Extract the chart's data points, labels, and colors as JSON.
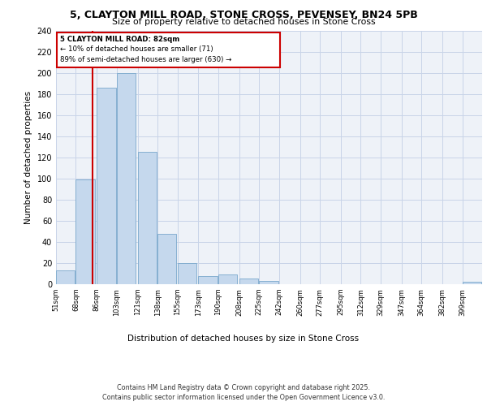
{
  "title_line1": "5, CLAYTON MILL ROAD, STONE CROSS, PEVENSEY, BN24 5PB",
  "title_line2": "Size of property relative to detached houses in Stone Cross",
  "xlabel": "Distribution of detached houses by size in Stone Cross",
  "ylabel": "Number of detached properties",
  "bin_labels": [
    "51sqm",
    "68sqm",
    "86sqm",
    "103sqm",
    "121sqm",
    "138sqm",
    "155sqm",
    "173sqm",
    "190sqm",
    "208sqm",
    "225sqm",
    "242sqm",
    "260sqm",
    "277sqm",
    "295sqm",
    "312sqm",
    "329sqm",
    "347sqm",
    "364sqm",
    "382sqm",
    "399sqm"
  ],
  "bin_edges": [
    51,
    68,
    86,
    103,
    121,
    138,
    155,
    173,
    190,
    208,
    225,
    242,
    260,
    277,
    295,
    312,
    329,
    347,
    364,
    382,
    399
  ],
  "bar_heights": [
    13,
    99,
    186,
    200,
    125,
    48,
    20,
    8,
    9,
    5,
    3,
    0,
    0,
    0,
    0,
    0,
    0,
    0,
    0,
    0,
    2
  ],
  "bar_color": "#c5d8ed",
  "bar_edge_color": "#7aa8cc",
  "property_size": 82,
  "red_line_color": "#cc0000",
  "annotation_text_line1": "5 CLAYTON MILL ROAD: 82sqm",
  "annotation_text_line2": "← 10% of detached houses are smaller (71)",
  "annotation_text_line3": "89% of semi-detached houses are larger (630) →",
  "ylim": [
    0,
    240
  ],
  "yticks": [
    0,
    20,
    40,
    60,
    80,
    100,
    120,
    140,
    160,
    180,
    200,
    220,
    240
  ],
  "grid_color": "#c8d4e8",
  "background_color": "#eef2f8",
  "footer_line1": "Contains HM Land Registry data © Crown copyright and database right 2025.",
  "footer_line2": "Contains public sector information licensed under the Open Government Licence v3.0."
}
